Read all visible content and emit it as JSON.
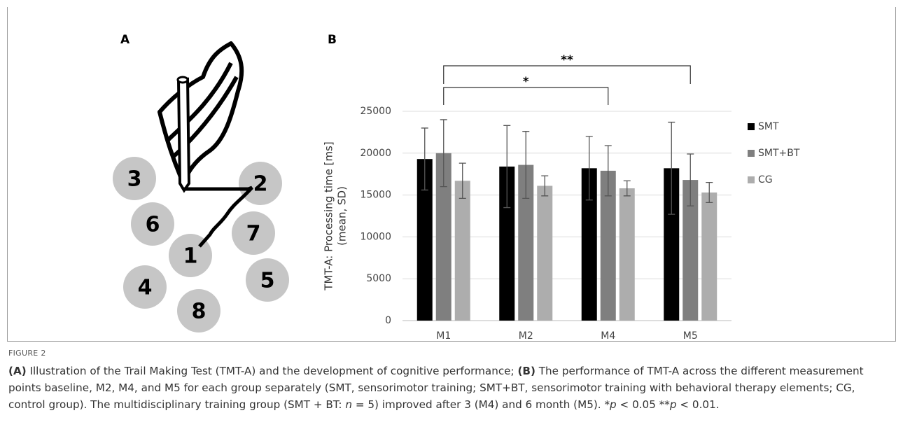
{
  "figure": {
    "panel_a_label": "A",
    "panel_b_label": "B",
    "label": "FIGURE 2",
    "caption": [
      "(A)",
      " Illustration of the Trail Making Test (TMT-A) and the development of cognitive performance; ",
      "(B)",
      " The performance of TMT-A across the different measurement points baseline, M2, M4, and M5 for each group separately (SMT, sensorimotor training; SMT+BT, sensorimotor training with behavioral therapy elements; CG, control group). The multidisciplinary training group (SMT + BT: ",
      "n",
      " = 5) improved after 3 (M4) and 6 month (M5). *",
      "p",
      " < 0.05 **",
      "p",
      " < 0.01."
    ]
  },
  "illustration": {
    "circles": [
      "3",
      "2",
      "6",
      "7",
      "1",
      "5",
      "4",
      "8"
    ]
  },
  "chart_data": {
    "type": "bar",
    "ylabel": [
      "TMT-A: Processing time [ms]",
      "(mean, SD)"
    ],
    "categories": [
      "M1",
      "M2",
      "M4",
      "M5"
    ],
    "series": [
      {
        "name": "SMT",
        "color": "#000000",
        "values": [
          19300,
          18400,
          18200,
          18200
        ],
        "errors": [
          3700,
          4900,
          3800,
          5500
        ]
      },
      {
        "name": "SMT+BT",
        "color": "#7f7f7f",
        "values": [
          20000,
          18600,
          17900,
          16800
        ],
        "errors": [
          4000,
          4000,
          3000,
          3100
        ]
      },
      {
        "name": "CG",
        "color": "#adadad",
        "values": [
          16700,
          16100,
          15800,
          15300
        ],
        "errors": [
          2100,
          1200,
          900,
          1200
        ]
      }
    ],
    "ylim": [
      0,
      25000
    ],
    "yticks": [
      0,
      5000,
      10000,
      15000,
      20000,
      25000
    ],
    "grid": true,
    "legend": "right",
    "annotations": [
      {
        "text": "*",
        "from": "M1",
        "to": "M4"
      },
      {
        "text": "**",
        "from": "M1",
        "to": "M5"
      }
    ]
  }
}
